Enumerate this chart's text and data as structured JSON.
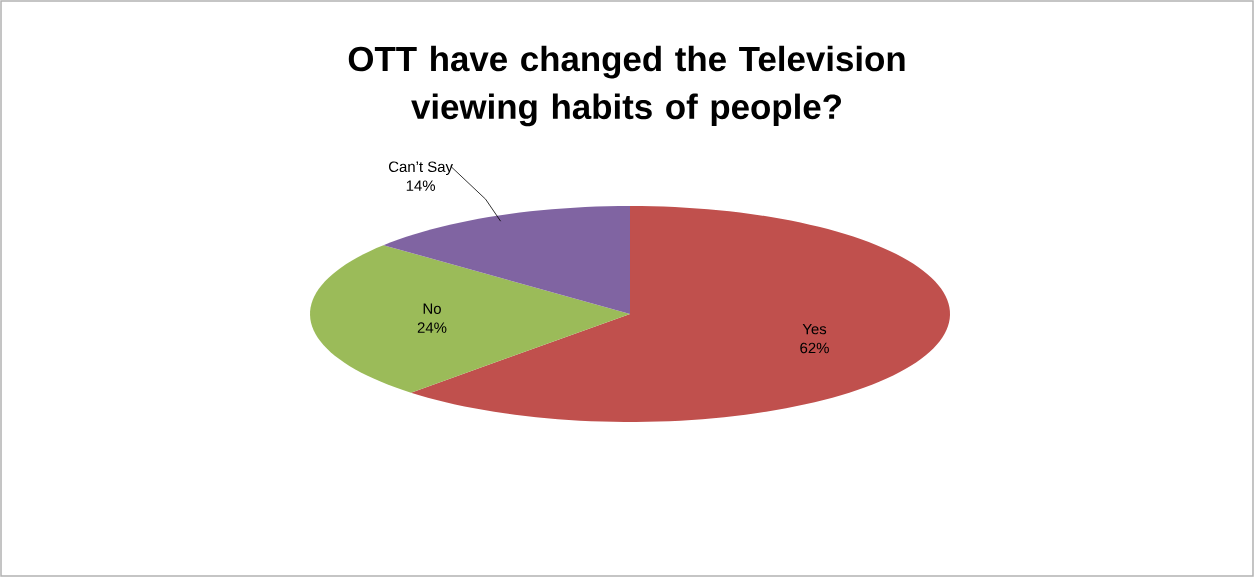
{
  "chart_data": {
    "type": "pie",
    "title": "OTT have changed the Television viewing habits of people?",
    "categories": [
      "Yes",
      "No",
      "Can’t Say"
    ],
    "values": [
      62,
      24,
      14
    ],
    "colors": [
      "#c0504d",
      "#9bbb59",
      "#8064a2"
    ],
    "value_labels": [
      "62%",
      "24%",
      "14%"
    ]
  }
}
